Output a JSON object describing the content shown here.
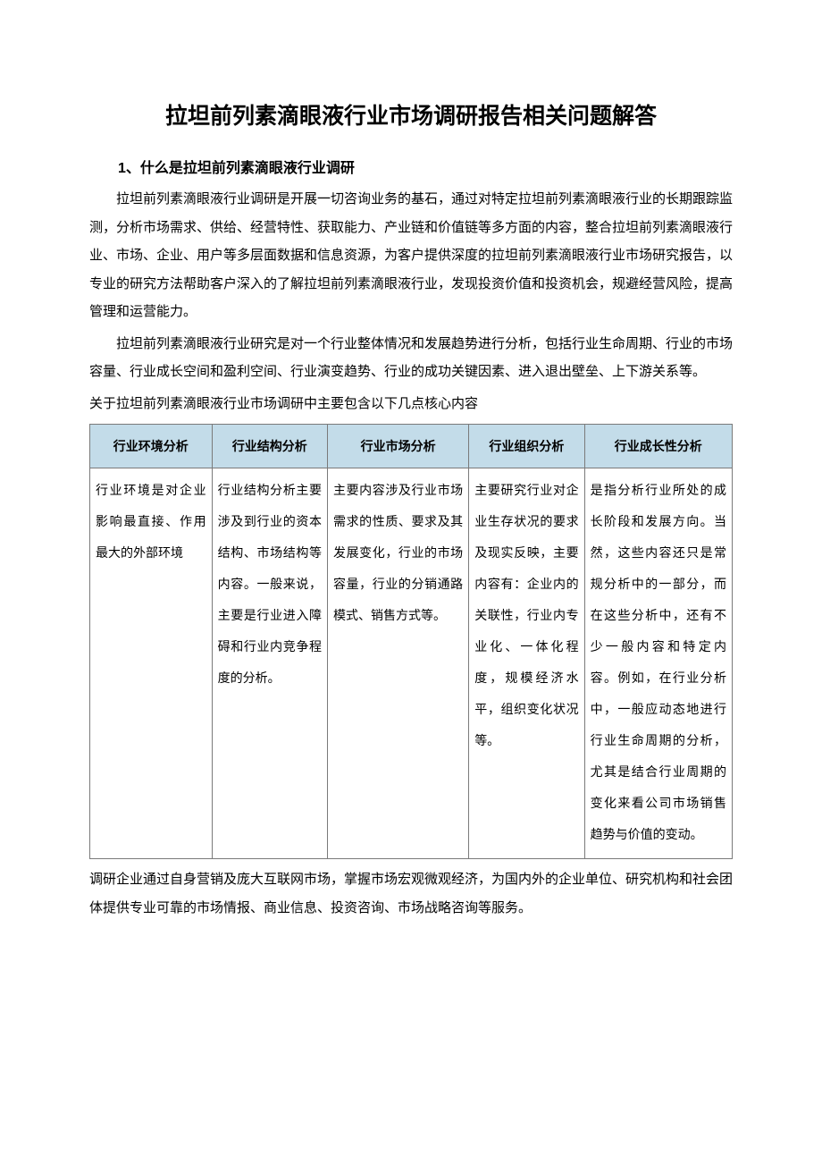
{
  "title": "拉坦前列素滴眼液行业市场调研报告相关问题解答",
  "section1": {
    "heading": "1、什么是拉坦前列素滴眼液行业调研",
    "p1": "拉坦前列素滴眼液行业调研是开展一切咨询业务的基石，通过对特定拉坦前列素滴眼液行业的长期跟踪监测，分析市场需求、供给、经营特性、获取能力、产业链和价值链等多方面的内容，整合拉坦前列素滴眼液行业、市场、企业、用户等多层面数据和信息资源，为客户提供深度的拉坦前列素滴眼液行业市场研究报告，以专业的研究方法帮助客户深入的了解拉坦前列素滴眼液行业，发现投资价值和投资机会，规避经营风险，提高管理和运营能力。",
    "p2": "拉坦前列素滴眼液行业研究是对一个行业整体情况和发展趋势进行分析，包括行业生命周期、行业的市场容量、行业成长空间和盈利空间、行业演变趋势、行业的成功关键因素、进入退出壁垒、上下游关系等。",
    "p3": "关于拉坦前列素滴眼液行业市场调研中主要包含以下几点核心内容"
  },
  "table": {
    "headers": [
      "行业环境分析",
      "行业结构分析",
      "行业市场分析",
      "行业组织分析",
      "行业成长性分析"
    ],
    "cells": [
      "行业环境是对企业影响最直接、作用最大的外部环境",
      "行业结构分析主要涉及到行业的资本结构、市场结构等内容。一般来说，主要是行业进入障碍和行业内竞争程度的分析。",
      "主要内容涉及行业市场需求的性质、要求及其发展变化，行业的市场容量，行业的分销通路模式、销售方式等。",
      "主要研究行业对企业生存状况的要求及现实反映，主要内容有：企业内的关联性，行业内专业化、一体化程度，规模经济水平，组织变化状况等。",
      "是指分析行业所处的成长阶段和发展方向。当然，这些内容还只是常规分析中的一部分，而在这些分析中，还有不少一般内容和特定内容。例如，在行业分析中，一般应动态地进行行业生命周期的分析，尤其是结合行业周期的变化来看公司市场销售趋势与价值的变动。"
    ],
    "header_bg": "#c3dce9",
    "border_color": "#7a7a7a",
    "font_size": 14
  },
  "footer_p": "调研企业通过自身营销及庞大互联网市场，掌握市场宏观微观经济，为国内外的企业单位、研究机构和社会团体提供专业可靠的市场情报、商业信息、投资咨询、市场战略咨询等服务。",
  "styling": {
    "page_bg": "#ffffff",
    "text_color": "#000000",
    "title_fontsize": 25,
    "heading_fontsize": 16,
    "body_fontsize": 15,
    "line_height": 2.1
  }
}
